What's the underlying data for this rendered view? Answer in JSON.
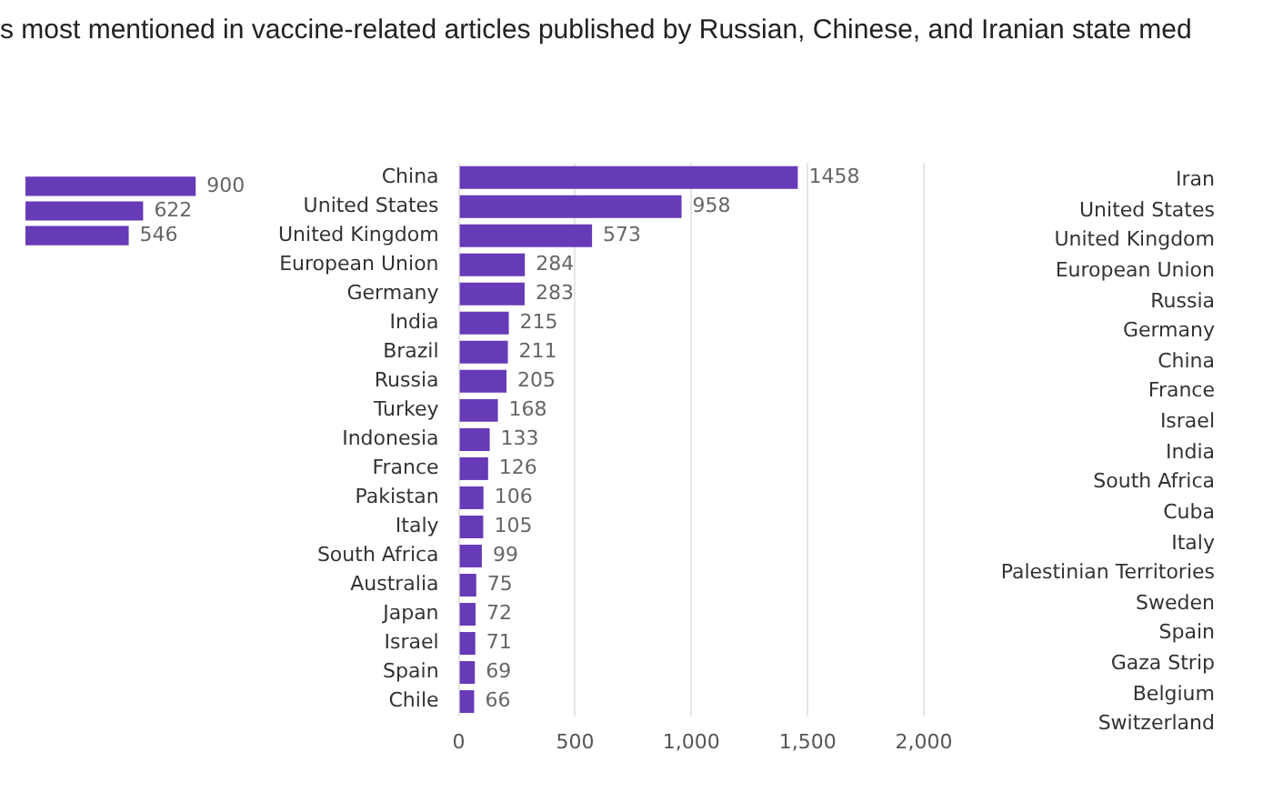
{
  "chart_data": [
    {
      "type": "bar",
      "title": "s most mentioned in vaccine-related articles published by Russian, Chinese, and Iranian state med",
      "orientation": "horizontal",
      "categories": [
        null,
        null,
        null
      ],
      "values": [
        900,
        622,
        546
      ],
      "color": "#673ab7",
      "data_labels": true
    },
    {
      "type": "bar",
      "orientation": "horizontal",
      "categories": [
        "China",
        "United States",
        "United Kingdom",
        "European Union",
        "Germany",
        "India",
        "Brazil",
        "Russia",
        "Turkey",
        "Indonesia",
        "France",
        "Pakistan",
        "Italy",
        "South Africa",
        "Australia",
        "Japan",
        "Israel",
        "Spain",
        "Chile"
      ],
      "values": [
        1458,
        958,
        573,
        284,
        283,
        215,
        211,
        205,
        168,
        133,
        126,
        106,
        105,
        99,
        75,
        72,
        71,
        69,
        66
      ],
      "color": "#673ab7",
      "data_labels": true,
      "xlim": [
        0,
        2000
      ],
      "xticks": [
        0,
        500,
        {
          "value": 1000,
          "label": "1,000"
        },
        {
          "value": 1500,
          "label": "1,500"
        },
        {
          "value": 2000,
          "label": "2,000"
        }
      ],
      "grid": "x"
    },
    {
      "type": "other",
      "categories": [
        "Iran",
        "United States",
        "United Kingdom",
        "European Union",
        "Russia",
        "Germany",
        "China",
        "France",
        "Israel",
        "India",
        "South Africa",
        "Cuba",
        "Italy",
        "Palestinian Territories",
        "Sweden",
        "Spain",
        "Gaza Strip",
        "Belgium",
        "Switzerland"
      ]
    }
  ]
}
